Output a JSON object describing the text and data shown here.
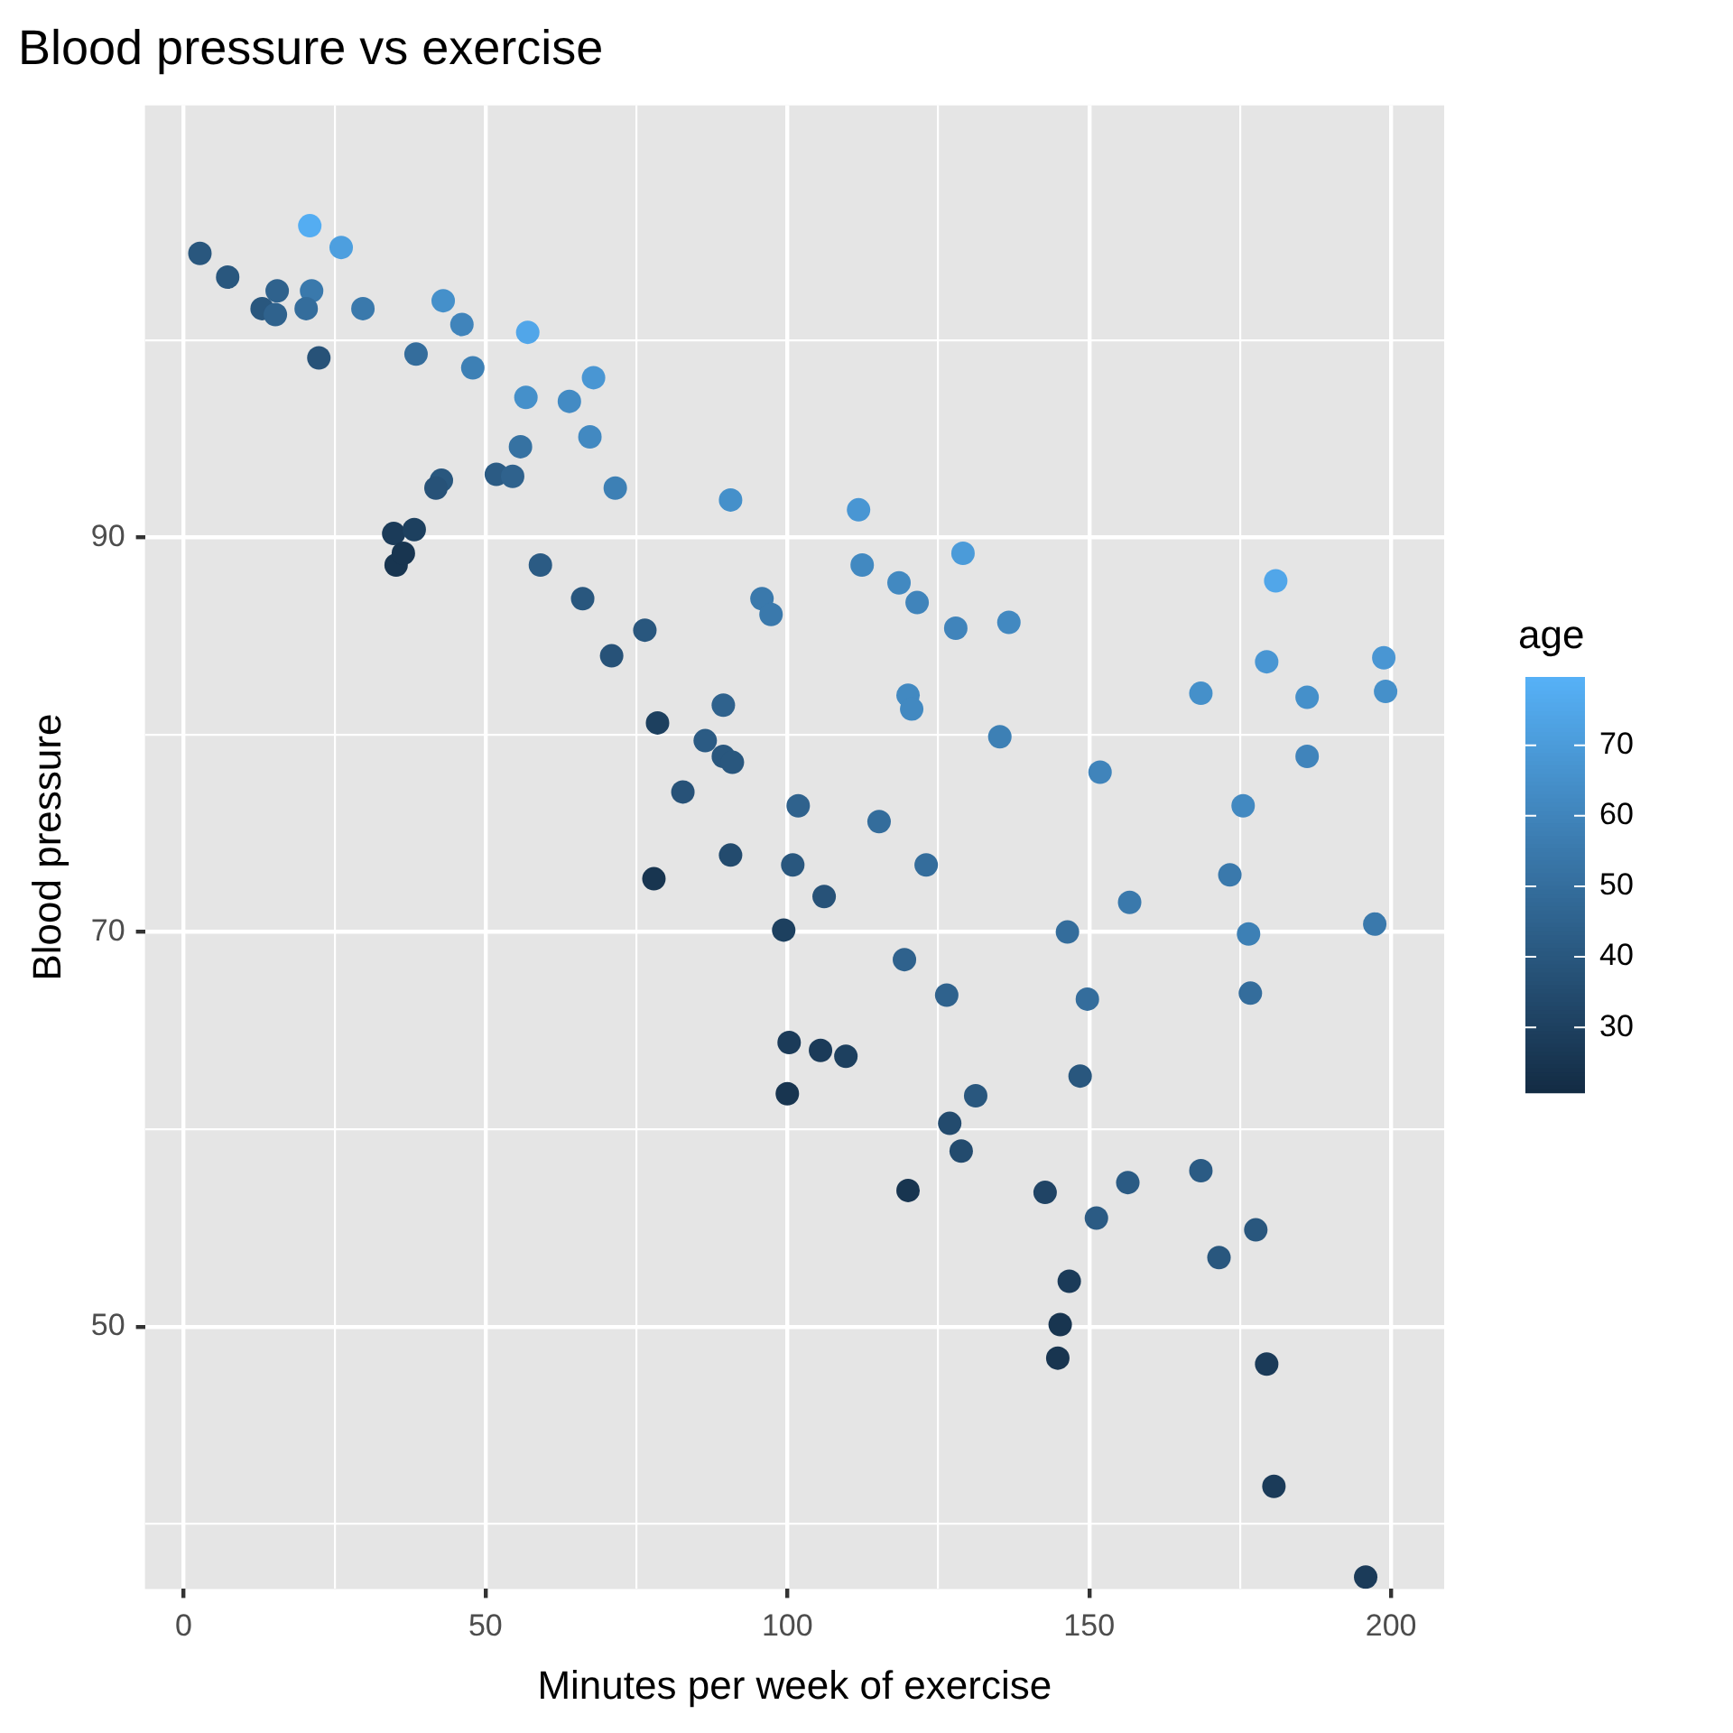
{
  "chart_data": {
    "type": "scatter",
    "title": "Blood pressure vs exercise",
    "xlabel": "Minutes per week of exercise",
    "ylabel": "Blood pressure",
    "clabel": "age",
    "xlim": [
      -6.4,
      208.8
    ],
    "xticks": [
      0,
      {
        "value": 25,
        "label": null
      },
      50,
      {
        "value": 75,
        "label": null
      },
      100,
      {
        "value": 125,
        "label": null
      },
      150,
      {
        "value": 175,
        "label": null
      },
      200
    ],
    "ylim": [
      36.7,
      111.9
    ],
    "yticks": [
      {
        "value": 40,
        "label": null
      },
      50,
      {
        "value": 60,
        "label": null
      },
      70,
      {
        "value": 80,
        "label": null
      },
      90,
      {
        "value": 100,
        "label": null
      }
    ],
    "clim": [
      20.8,
      79.7
    ],
    "cticks": [
      30,
      40,
      50,
      60,
      70
    ],
    "grid": true,
    "legend": false,
    "marker": "circle",
    "series": [
      {
        "x": [
          2.7,
          7.3,
          15.5,
          13.0,
          15.2,
          20.9,
          26.1,
          21.2,
          20.3,
          29.7,
          22.4,
          38.5,
          43.0,
          46.1,
          47.9,
          57.0,
          56.7,
          63.9,
          67.9,
          67.3,
          55.8,
          51.8,
          54.5,
          42.7,
          41.8,
          71.5,
          90.6,
          111.8,
          129.1,
          112.4,
          118.5,
          121.5,
          127.9,
          136.7,
          95.8,
          97.3,
          34.8,
          38.2,
          35.2,
          36.4,
          59.1,
          66.1,
          70.9,
          76.4,
          78.5,
          86.4,
          89.4,
          89.4,
          90.9,
          82.7,
          77.9,
          90.6,
          101.8,
          100.9,
          106.1,
          115.2,
          123.0,
          99.4,
          119.4,
          126.4,
          120.0,
          120.6,
          135.2,
          151.8,
          100.3,
          105.5,
          109.7,
          100.0,
          131.2,
          126.9,
          128.8,
          120.0,
          148.5,
          146.4,
          149.7,
          156.7,
          142.7,
          151.2,
          156.4,
          146.7,
          145.2,
          144.8,
          168.5,
          171.5,
          177.6,
          179.4,
          180.6,
          195.8,
          168.5,
          179.4,
          180.9,
          186.1,
          198.8,
          199.1,
          186.1,
          175.5,
          173.3,
          176.4,
          176.7,
          197.3
        ],
        "values": [
          104.4,
          103.2,
          102.5,
          101.6,
          101.3,
          105.8,
          104.7,
          102.5,
          101.6,
          101.6,
          99.1,
          99.3,
          102.0,
          100.8,
          98.6,
          100.4,
          97.1,
          96.9,
          98.1,
          95.1,
          94.6,
          93.2,
          93.1,
          92.9,
          92.5,
          92.5,
          91.9,
          91.4,
          89.2,
          88.6,
          87.7,
          86.7,
          85.4,
          85.7,
          86.9,
          86.1,
          90.2,
          90.4,
          88.6,
          89.2,
          88.6,
          86.9,
          84.0,
          85.3,
          80.6,
          79.7,
          81.5,
          78.9,
          78.6,
          77.1,
          72.7,
          73.9,
          76.4,
          73.4,
          71.8,
          75.6,
          73.4,
          70.1,
          68.6,
          66.8,
          82.0,
          81.3,
          79.9,
          78.1,
          64.4,
          64.0,
          63.7,
          61.8,
          61.7,
          60.3,
          58.9,
          56.9,
          62.7,
          70.0,
          66.6,
          71.5,
          56.8,
          55.5,
          57.3,
          52.3,
          50.1,
          48.4,
          57.9,
          53.5,
          54.9,
          48.1,
          41.9,
          37.3,
          82.1,
          83.7,
          87.8,
          81.9,
          83.9,
          82.2,
          78.9,
          76.4,
          72.9,
          69.9,
          66.9,
          70.4
        ],
        "cvalues": [
          40,
          40,
          45,
          40,
          45,
          78,
          72,
          55,
          50,
          55,
          38,
          50,
          65,
          60,
          58,
          75,
          65,
          63,
          68,
          62,
          52,
          42,
          45,
          40,
          38,
          58,
          65,
          68,
          70,
          62,
          62,
          60,
          60,
          62,
          55,
          55,
          28,
          30,
          25,
          25,
          42,
          40,
          38,
          40,
          30,
          42,
          45,
          40,
          40,
          38,
          25,
          35,
          45,
          40,
          38,
          50,
          50,
          30,
          45,
          45,
          62,
          62,
          58,
          60,
          28,
          28,
          30,
          25,
          40,
          35,
          35,
          25,
          40,
          50,
          50,
          55,
          32,
          42,
          42,
          28,
          25,
          25,
          42,
          40,
          40,
          28,
          28,
          28,
          65,
          68,
          75,
          65,
          68,
          65,
          60,
          62,
          55,
          58,
          50,
          55
        ]
      }
    ]
  }
}
